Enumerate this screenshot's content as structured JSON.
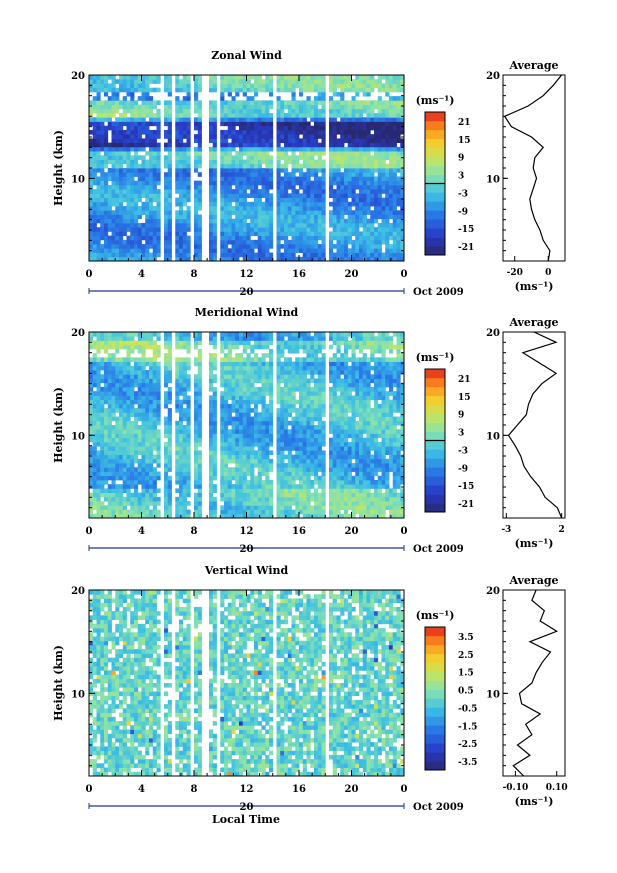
{
  "xlabel": "Local Time",
  "date_label": "Oct 2009",
  "day_label": "20",
  "chart_data": [
    {
      "type": "heatmap",
      "title": "Zonal Wind",
      "ylabel": "Height (km)",
      "xlabel": "Local Time",
      "x_ticks": [
        "0",
        "4",
        "8",
        "12",
        "16",
        "20",
        "0"
      ],
      "x_range": [
        0,
        24
      ],
      "y_ticks": [
        "20",
        "10"
      ],
      "y_range": [
        2,
        20
      ],
      "colorbar": {
        "unit": "(ms⁻¹)",
        "ticks": [
          "21",
          "15",
          "9",
          "3",
          "-3",
          "-9",
          "-15",
          "-21"
        ],
        "range": [
          -24,
          24
        ],
        "contour_at": 0
      },
      "profile": {
        "title": "Average",
        "xlabel": "(ms⁻¹)",
        "x_ticks": [
          "-20",
          "0"
        ],
        "xlim": [
          -27,
          10
        ],
        "y_ticks": [
          "20",
          "10"
        ],
        "heights_km": [
          2,
          3,
          4,
          5,
          6,
          7,
          8,
          9,
          10,
          11,
          12,
          13,
          14,
          15,
          16,
          17,
          18,
          19,
          20
        ],
        "values": [
          0,
          1,
          -3,
          -5,
          -8,
          -10,
          -11,
          -9,
          -7,
          -9,
          -8,
          -3,
          -10,
          -22,
          -26,
          -12,
          -3,
          3,
          8
        ]
      }
    },
    {
      "type": "heatmap",
      "title": "Meridional Wind",
      "ylabel": "Height (km)",
      "xlabel": "Local Time",
      "x_ticks": [
        "0",
        "4",
        "8",
        "12",
        "16",
        "20",
        "0"
      ],
      "x_range": [
        0,
        24
      ],
      "y_ticks": [
        "20",
        "10"
      ],
      "y_range": [
        2,
        20
      ],
      "colorbar": {
        "unit": "(ms⁻¹)",
        "ticks": [
          "21",
          "15",
          "9",
          "3",
          "-3",
          "-9",
          "-15",
          "-21"
        ],
        "range": [
          -24,
          24
        ],
        "contour_at": 0
      },
      "profile": {
        "title": "Average",
        "xlabel": "(ms⁻¹)",
        "x_ticks": [
          "-3",
          "2"
        ],
        "xlim": [
          -3.3,
          2.3
        ],
        "y_ticks": [
          "20",
          "10"
        ],
        "heights_km": [
          2,
          3,
          4,
          5,
          6,
          7,
          8,
          9,
          10,
          11,
          12,
          13,
          14,
          15,
          16,
          17,
          18,
          19,
          20
        ],
        "values": [
          2.0,
          1.6,
          0.5,
          0.0,
          -0.8,
          -1.4,
          -1.7,
          -2.2,
          -2.8,
          -2.0,
          -1.2,
          -1.0,
          -0.6,
          0.2,
          1.5,
          0.0,
          -1.5,
          1.5,
          -0.5
        ]
      }
    },
    {
      "type": "heatmap",
      "title": "Vertical Wind",
      "ylabel": "Height (km)",
      "xlabel": "Local Time",
      "x_ticks": [
        "0",
        "4",
        "8",
        "12",
        "16",
        "20",
        "0"
      ],
      "x_range": [
        0,
        24
      ],
      "y_ticks": [
        "20",
        "10"
      ],
      "y_range": [
        2,
        20
      ],
      "colorbar": {
        "unit": "(ms⁻¹)",
        "ticks": [
          "3.5",
          "2.5",
          "1.5",
          "0.5",
          "-0.5",
          "-1.5",
          "-2.5",
          "-3.5"
        ],
        "range": [
          -4,
          4
        ]
      },
      "profile": {
        "title": "Average",
        "xlabel": "(ms⁻¹)",
        "x_ticks": [
          "-0.10",
          "0.10"
        ],
        "xlim": [
          -0.16,
          0.14
        ],
        "y_ticks": [
          "20",
          "10"
        ],
        "heights_km": [
          2,
          3,
          4,
          5,
          6,
          7,
          8,
          9,
          10,
          11,
          12,
          13,
          14,
          15,
          16,
          17,
          18,
          19,
          20
        ],
        "values": [
          -0.06,
          -0.11,
          -0.03,
          -0.09,
          -0.02,
          -0.05,
          0.02,
          -0.07,
          -0.08,
          -0.02,
          0.0,
          0.03,
          0.07,
          -0.03,
          0.1,
          0.02,
          0.04,
          -0.02,
          0.0
        ]
      }
    }
  ]
}
